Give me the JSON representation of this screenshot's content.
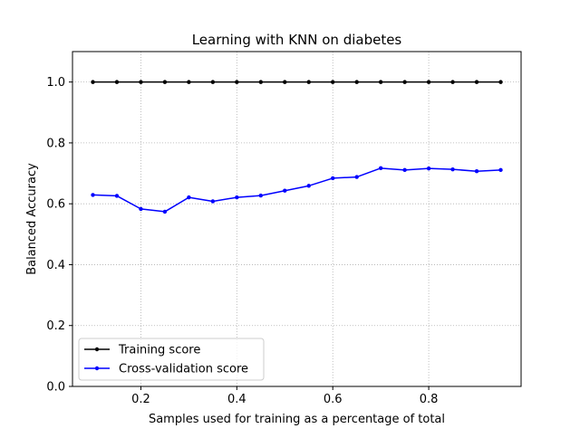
{
  "chart_data": {
    "type": "line",
    "title": "Learning with KNN on diabetes",
    "xlabel": "Samples used for training as a percentage of total",
    "ylabel": "Balanced Accuracy",
    "xlim": [
      0.0575,
      0.9925
    ],
    "ylim": [
      0.0,
      1.1
    ],
    "xticks": [
      0.2,
      0.4,
      0.6,
      0.8
    ],
    "xtick_labels": [
      "0.2",
      "0.4",
      "0.6",
      "0.8"
    ],
    "yticks": [
      0.0,
      0.2,
      0.4,
      0.6,
      0.8,
      1.0
    ],
    "ytick_labels": [
      "0.0",
      "0.2",
      "0.4",
      "0.6",
      "0.8",
      "1.0"
    ],
    "grid": true,
    "legend_position": "lower-left",
    "x": [
      0.1,
      0.15,
      0.2,
      0.25,
      0.3,
      0.35,
      0.4,
      0.45,
      0.5,
      0.55,
      0.6,
      0.65,
      0.7,
      0.75,
      0.8,
      0.85,
      0.9,
      0.95
    ],
    "series": [
      {
        "name": "Training score",
        "color": "#000000",
        "values": [
          1.0,
          1.0,
          1.0,
          1.0,
          1.0,
          1.0,
          1.0,
          1.0,
          1.0,
          1.0,
          1.0,
          1.0,
          1.0,
          1.0,
          1.0,
          1.0,
          1.0,
          1.0
        ]
      },
      {
        "name": "Cross-validation score",
        "color": "#0000ff",
        "values": [
          0.629,
          0.626,
          0.583,
          0.574,
          0.621,
          0.608,
          0.621,
          0.627,
          0.643,
          0.659,
          0.684,
          0.688,
          0.717,
          0.711,
          0.716,
          0.713,
          0.707,
          0.711
        ]
      }
    ]
  }
}
